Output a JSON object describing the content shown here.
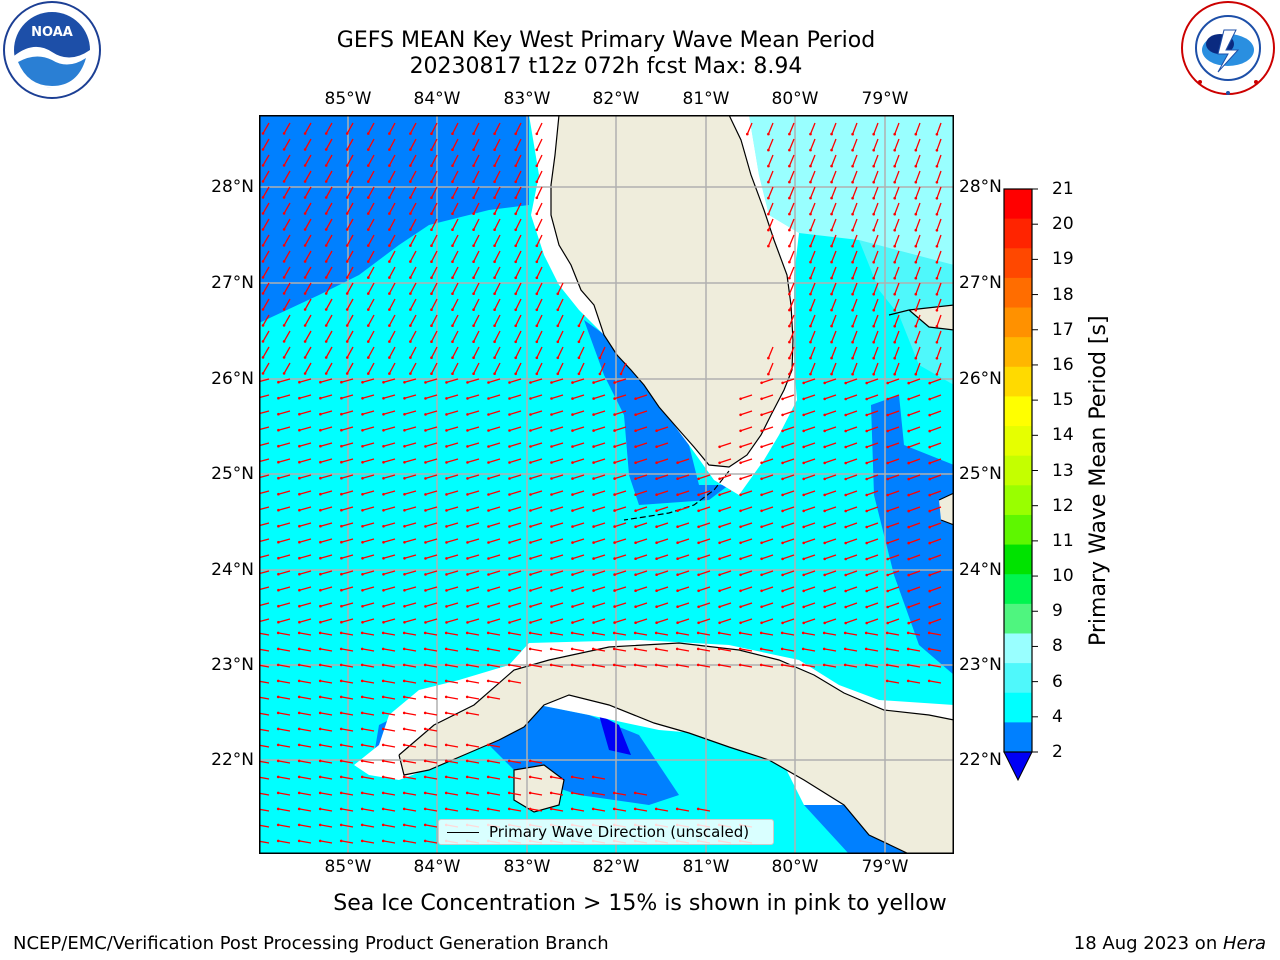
{
  "title_line1": "GEFS MEAN Key West Primary Wave Mean Period",
  "title_line2": "20230817 t12z 072h fcst   Max: 8.94",
  "logos": {
    "left": "noaa-logo",
    "right": "nws-logo"
  },
  "logo_text": {
    "noaa": "NOAA",
    "nws": "NATIONAL WEATHER SERVICE"
  },
  "map": {
    "lon_labels": [
      "85°W",
      "84°W",
      "83°W",
      "82°W",
      "81°W",
      "80°W",
      "79°W"
    ],
    "lat_labels": [
      "28°N",
      "27°N",
      "26°N",
      "25°N",
      "24°N",
      "23°N",
      "22°N"
    ],
    "colors": {
      "land": "#efeddc",
      "cyan": "#00ffff",
      "light_cyan": "#99ffff",
      "mid_cyan": "#4ff8fb",
      "blue": "#0080ff",
      "dark_blue": "#0000f5",
      "arrow": "#ff0000",
      "grid": "#b0b0b0"
    }
  },
  "legend_label": "Primary Wave Direction (unscaled)",
  "colorbar": {
    "label": "Primary Wave Mean Period [s]",
    "ticks": [
      "21",
      "20",
      "19",
      "18",
      "17",
      "16",
      "15",
      "14",
      "13",
      "12",
      "11",
      "10",
      "9",
      "8",
      "6",
      "4",
      "2"
    ],
    "colors_top_to_bottom": [
      "#ff0000",
      "#ff2400",
      "#ff4800",
      "#ff6d00",
      "#ff9100",
      "#ffb600",
      "#ffda00",
      "#ffff00",
      "#e6ff00",
      "#c4ff00",
      "#99ff00",
      "#5ef700",
      "#00e300",
      "#00f54f",
      "#4ff57f",
      "#99ffff",
      "#4ff8fb",
      "#00ffff",
      "#0080ff"
    ],
    "extend_color": "#0000f5"
  },
  "note": "Sea Ice Concentration > 15% is shown in pink to yellow",
  "footer_left": "NCEP/EMC/Verification Post Processing Product Generation Branch",
  "footer_right_date": "18 Aug 2023 on ",
  "footer_right_host": "Hera"
}
